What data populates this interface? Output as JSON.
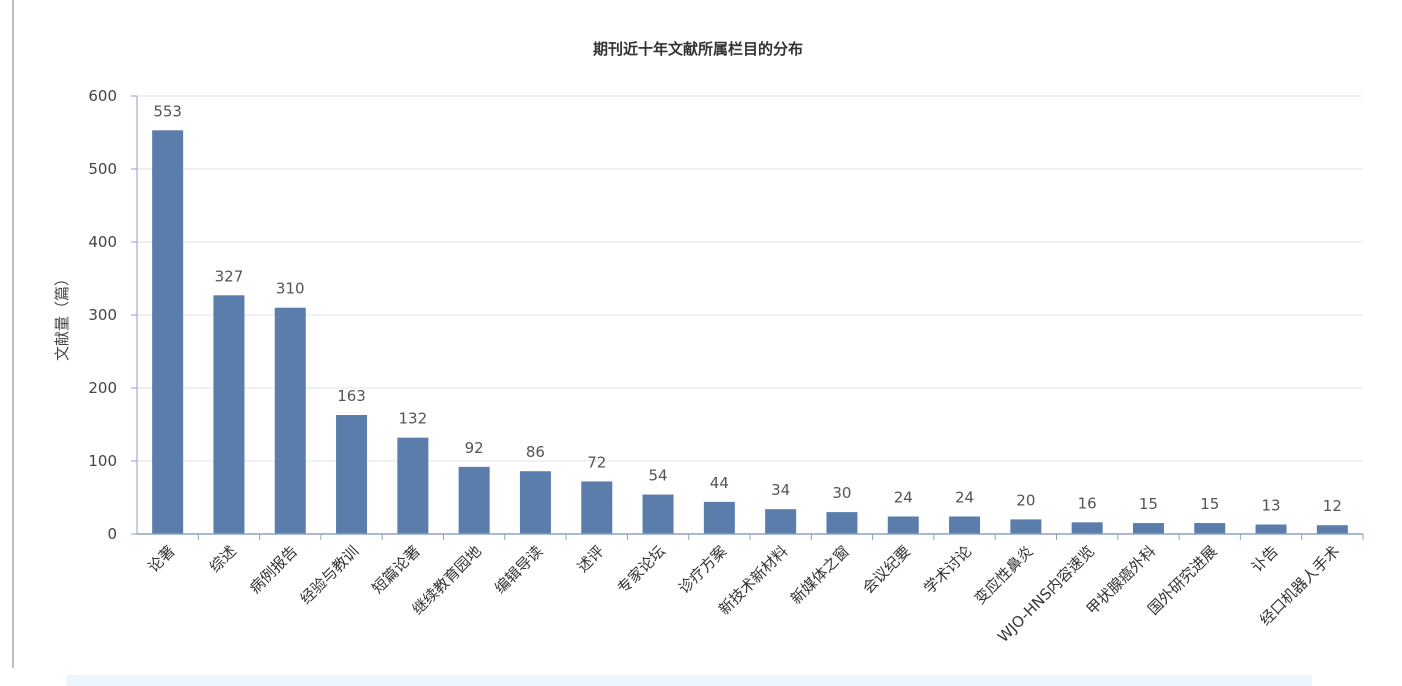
{
  "chart_data": {
    "type": "bar",
    "title": "期刊近十年文献所属栏目的分布",
    "ylabel": "文献量（篇）",
    "xlabel": "",
    "ylim": [
      0,
      600
    ],
    "yticks": [
      0,
      100,
      200,
      300,
      400,
      500,
      600
    ],
    "grid": true,
    "bar_color": "#5b7dab",
    "categories": [
      "论著",
      "综述",
      "病例报告",
      "经验与教训",
      "短篇论著",
      "继续教育园地",
      "编辑导读",
      "述评",
      "专家论坛",
      "诊疗方案",
      "新技术新材料",
      "新媒体之窗",
      "会议纪要",
      "学术讨论",
      "变应性鼻炎",
      "WJO-HNS内容速览",
      "甲状腺癌外科",
      "国外研究进展",
      "讣告",
      "经口机器人手术"
    ],
    "values": [
      553,
      327,
      310,
      163,
      132,
      92,
      86,
      72,
      54,
      44,
      34,
      30,
      24,
      24,
      20,
      16,
      15,
      15,
      13,
      12
    ]
  }
}
